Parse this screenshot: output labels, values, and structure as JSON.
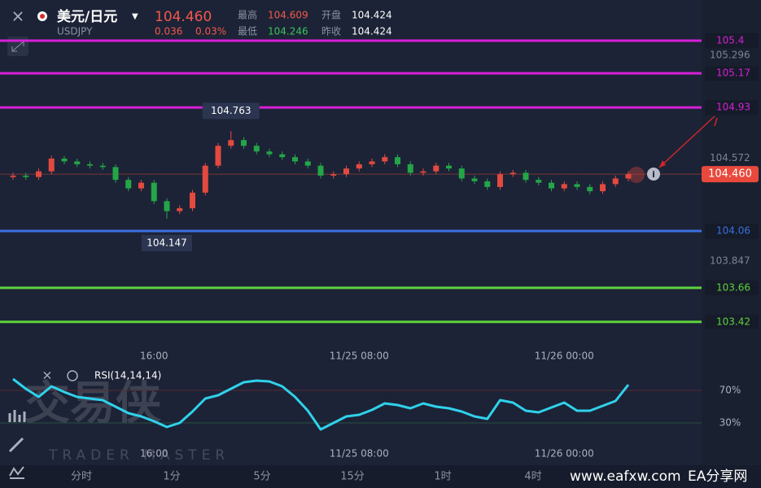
{
  "header": {
    "name": "美元/日元",
    "symbol": "USDJPY",
    "change": 0.036,
    "change_pct": {
      "value": 0.03,
      "label": "0.03%"
    },
    "stats": [
      {
        "label": "最高",
        "value": 104.609,
        "color": "#f2584b"
      },
      {
        "label": "最低",
        "value": 104.246,
        "color": "#3cc45a"
      },
      {
        "label": "开盘",
        "value": 104.424,
        "color": "#ffffff"
      },
      {
        "label": "昨收",
        "value": 104.424,
        "color": "#ffffff"
      }
    ]
  },
  "chart_data": [
    {
      "type": "candlestick",
      "categories": [
        null,
        null,
        null,
        null,
        null,
        null,
        null,
        null,
        null,
        null,
        null,
        "16:00",
        null,
        null,
        null,
        null,
        null,
        null,
        null,
        null,
        null,
        null,
        null,
        null,
        null,
        null,
        null,
        "11/25 08:00",
        null,
        null,
        null,
        null,
        null,
        null,
        null,
        null,
        null,
        null,
        null,
        null,
        null,
        null,
        null,
        "11/26 00:00",
        null,
        null,
        null,
        null,
        null
      ],
      "open": [
        104.44,
        104.45,
        104.44,
        104.48,
        104.57,
        104.55,
        104.53,
        104.52,
        104.51,
        104.42,
        104.36,
        104.4,
        104.27,
        104.2,
        104.22,
        104.33,
        104.52,
        104.66,
        104.7,
        104.66,
        104.62,
        104.6,
        104.58,
        104.55,
        104.52,
        104.45,
        104.46,
        104.5,
        104.53,
        104.55,
        104.58,
        104.53,
        104.47,
        104.48,
        104.52,
        104.5,
        104.43,
        104.41,
        104.37,
        104.46,
        104.47,
        104.42,
        104.4,
        104.36,
        104.39,
        104.37,
        104.34,
        104.39,
        104.43
      ],
      "high": [
        104.47,
        104.47,
        104.5,
        104.59,
        104.59,
        104.57,
        104.55,
        104.54,
        104.53,
        104.44,
        104.42,
        104.42,
        104.29,
        104.24,
        104.35,
        104.54,
        104.68,
        104.763,
        104.72,
        104.68,
        104.64,
        104.62,
        104.6,
        104.57,
        104.54,
        104.48,
        104.52,
        104.55,
        104.57,
        104.6,
        104.6,
        104.55,
        104.5,
        104.54,
        104.54,
        104.52,
        104.45,
        104.43,
        104.48,
        104.49,
        104.49,
        104.44,
        104.42,
        104.41,
        104.41,
        104.39,
        104.41,
        104.45,
        104.48
      ],
      "low": [
        104.42,
        104.42,
        104.42,
        104.46,
        104.53,
        104.51,
        104.5,
        104.49,
        104.4,
        104.34,
        104.34,
        104.25,
        104.147,
        104.18,
        104.2,
        104.31,
        104.5,
        104.64,
        104.64,
        104.6,
        104.58,
        104.56,
        104.53,
        104.5,
        104.43,
        104.43,
        104.44,
        104.48,
        104.51,
        104.53,
        104.51,
        104.45,
        104.45,
        104.46,
        104.48,
        104.41,
        104.39,
        104.35,
        104.35,
        104.44,
        104.4,
        104.38,
        104.34,
        104.34,
        104.35,
        104.32,
        104.32,
        104.37,
        104.41
      ],
      "close": [
        104.45,
        104.44,
        104.48,
        104.57,
        104.55,
        104.53,
        104.52,
        104.51,
        104.42,
        104.36,
        104.4,
        104.27,
        104.2,
        104.22,
        104.33,
        104.52,
        104.66,
        104.7,
        104.66,
        104.62,
        104.6,
        104.58,
        104.55,
        104.52,
        104.45,
        104.46,
        104.5,
        104.53,
        104.55,
        104.58,
        104.53,
        104.47,
        104.48,
        104.52,
        104.5,
        104.43,
        104.41,
        104.37,
        104.46,
        104.47,
        104.42,
        104.4,
        104.36,
        104.39,
        104.37,
        104.34,
        104.39,
        104.43,
        104.46
      ],
      "up_color": "#e34a3f",
      "down_color": "#23a548",
      "ylim": [
        103.224,
        105.486
      ],
      "yticks": [
        105.296,
        104.572,
        103.847
      ],
      "levels": [
        {
          "value": 105.4,
          "color": "#d61fd6"
        },
        {
          "value": 105.17,
          "color": "#d61fd6"
        },
        {
          "value": 104.93,
          "color": "#d61fd6"
        },
        {
          "value": 104.06,
          "color": "#3a6fe0"
        },
        {
          "value": 103.66,
          "color": "#5cd23c"
        },
        {
          "value": 103.42,
          "color": "#5cd23c"
        }
      ],
      "last_price": {
        "value": 104.46,
        "label": "104.460"
      },
      "last_color": "#e8493c"
    },
    {
      "type": "line",
      "title": "RSI(14,14,14)",
      "categories": [
        null,
        null,
        null,
        null,
        null,
        null,
        null,
        null,
        null,
        null,
        null,
        "16:00",
        null,
        null,
        null,
        null,
        null,
        null,
        null,
        null,
        null,
        null,
        null,
        null,
        null,
        null,
        null,
        "11/25 08:00",
        null,
        null,
        null,
        null,
        null,
        null,
        null,
        null,
        null,
        null,
        null,
        null,
        null,
        null,
        null,
        "11/26 00:00",
        null,
        null,
        null,
        null,
        null
      ],
      "series": [
        {
          "color": "#2fd2ea",
          "values": [
            84,
            72,
            62,
            75,
            68,
            62,
            60,
            58,
            50,
            42,
            38,
            32,
            25,
            30,
            44,
            60,
            64,
            72,
            80,
            82,
            81,
            75,
            62,
            45,
            22,
            30,
            38,
            40,
            46,
            54,
            52,
            48,
            54,
            50,
            48,
            44,
            38,
            35,
            58,
            55,
            45,
            43,
            49,
            55,
            45,
            45,
            51,
            57,
            77
          ]
        }
      ],
      "ylim": [
        5,
        95
      ],
      "yticks": [
        {
          "value": 70,
          "label": "70%"
        },
        {
          "value": 30,
          "label": "30%"
        }
      ],
      "grid_colors": [
        "#5a2a35",
        "#2a5040"
      ]
    }
  ],
  "toolbar": {
    "periods": [
      "分时",
      "1分",
      "5分",
      "15分",
      "1时",
      "4时"
    ]
  },
  "watermark": {
    "cn": "交易侠",
    "en": "TRADER MASTER"
  },
  "footer": {
    "site": "www.eafxw.com",
    "brand": "EA分享网"
  }
}
